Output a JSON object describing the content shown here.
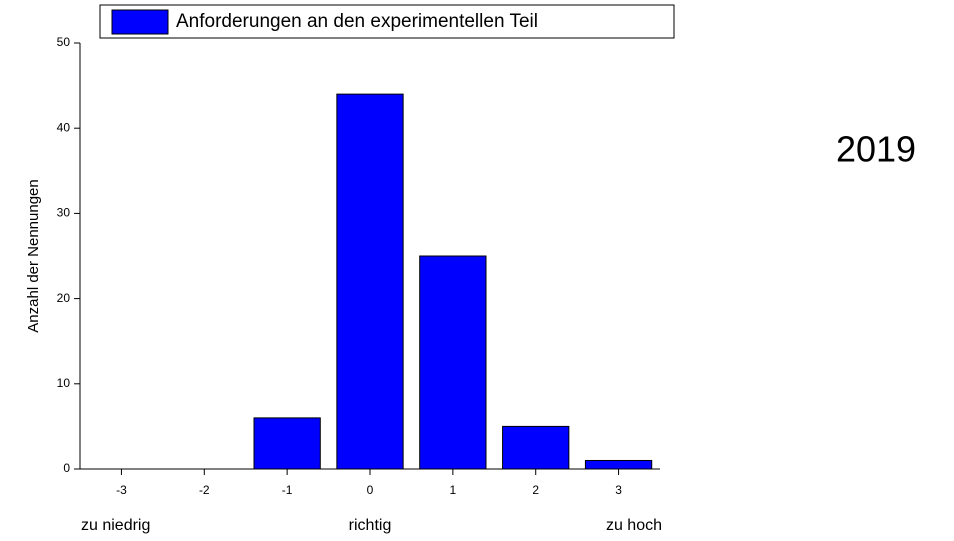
{
  "chart_data": {
    "type": "bar",
    "x": [
      -3,
      -2,
      -1,
      0,
      1,
      2,
      3
    ],
    "series": [
      {
        "name": "Anforderungen an den experimentellen Teil",
        "color": "#0000ff",
        "values": [
          0,
          0,
          6,
          44,
          25,
          5,
          1
        ]
      }
    ],
    "xlim": [
      -3.5,
      3.5
    ],
    "xticks": [
      -3,
      -2,
      -1,
      0,
      1,
      2,
      3
    ],
    "ylim": [
      0,
      50
    ],
    "yticks": [
      0,
      10,
      20,
      30,
      40,
      50
    ],
    "ylabel": "Anzahl der Nennungen",
    "annotations": [
      "zu niedrig",
      "richtig",
      "zu hoch",
      "2019"
    ],
    "grid": false
  }
}
